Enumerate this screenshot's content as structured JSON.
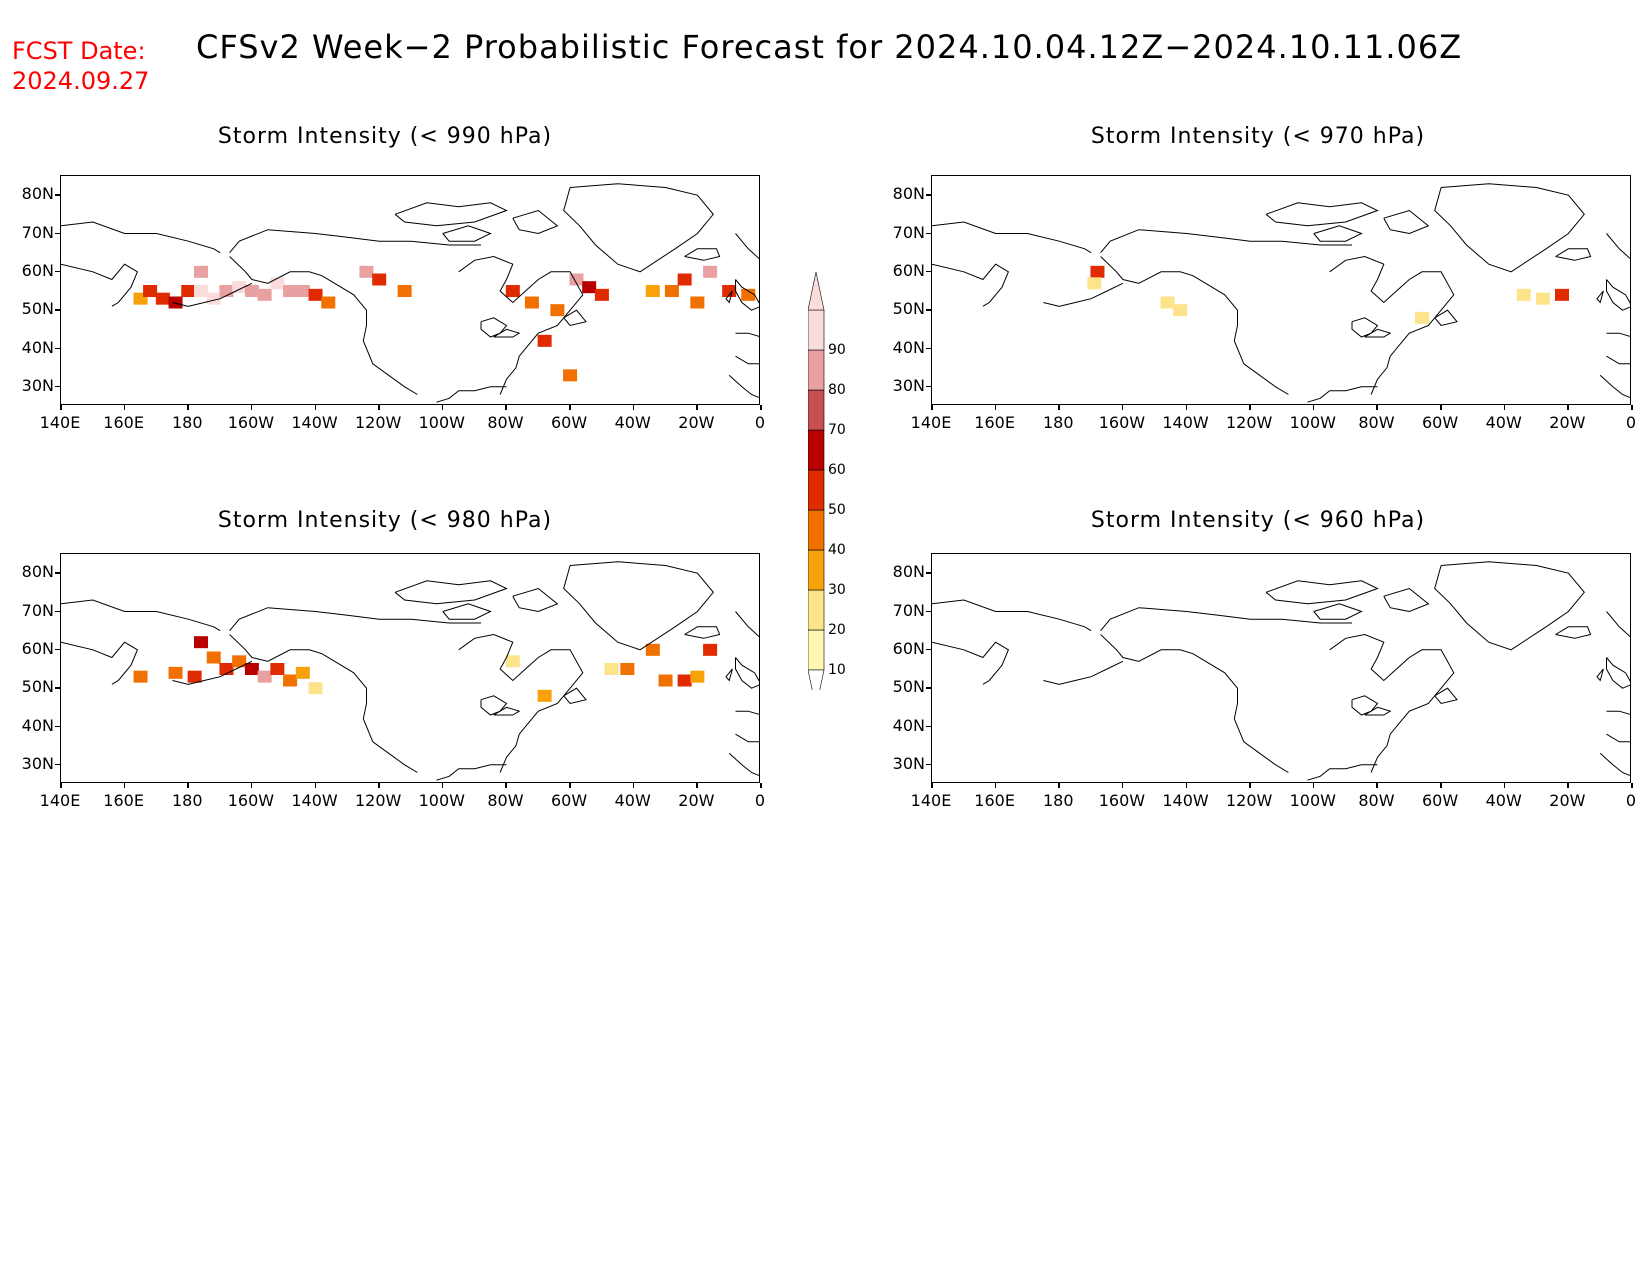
{
  "header": {
    "fcst_label": "FCST Date:",
    "fcst_date": "2024.09.27",
    "title": "CFSv2 Week−2 Probabilistic Forecast for 2024.10.04.12Z−2024.10.11.06Z"
  },
  "axes": {
    "lat_labels": [
      "80N",
      "70N",
      "60N",
      "50N",
      "40N",
      "30N"
    ],
    "lat_values": [
      80,
      70,
      60,
      50,
      40,
      30
    ],
    "lon_labels": [
      "140E",
      "160E",
      "180",
      "160W",
      "140W",
      "120W",
      "100W",
      "80W",
      "60W",
      "40W",
      "20W",
      "0"
    ],
    "lon_values": [
      140,
      160,
      180,
      200,
      220,
      240,
      260,
      280,
      300,
      320,
      340,
      360
    ],
    "lon_range": [
      140,
      360
    ],
    "lat_range": [
      25,
      85
    ]
  },
  "panels": [
    {
      "id": "p990",
      "title": "Storm Intensity (< 990 hPa)"
    },
    {
      "id": "p970",
      "title": "Storm Intensity (< 970 hPa)"
    },
    {
      "id": "p980",
      "title": "Storm Intensity (< 980 hPa)"
    },
    {
      "id": "p960",
      "title": "Storm Intensity (< 960 hPa)"
    }
  ],
  "colorbar": {
    "levels": [
      "10",
      "20",
      "30",
      "40",
      "50",
      "60",
      "70",
      "80",
      "90"
    ],
    "colors": [
      "#fff6b4",
      "#fde48a",
      "#f7a20a",
      "#f07000",
      "#e02a00",
      "#b80000",
      "#c85050",
      "#e8a0a0",
      "#fadcdc"
    ]
  },
  "chart_data": [
    {
      "type": "heatmap",
      "title": "Storm Intensity (< 990 hPa)",
      "x_unit": "longitude (deg E)",
      "y_unit": "latitude",
      "cells": [
        {
          "lon": 165,
          "lat": 53,
          "p": 30
        },
        {
          "lon": 168,
          "lat": 55,
          "p": 50
        },
        {
          "lon": 172,
          "lat": 53,
          "p": 50
        },
        {
          "lon": 176,
          "lat": 52,
          "p": 60
        },
        {
          "lon": 180,
          "lat": 55,
          "p": 50
        },
        {
          "lon": 184,
          "lat": 55,
          "p": 90
        },
        {
          "lon": 184,
          "lat": 60,
          "p": 80
        },
        {
          "lon": 188,
          "lat": 53,
          "p": 90
        },
        {
          "lon": 192,
          "lat": 55,
          "p": 80
        },
        {
          "lon": 196,
          "lat": 56,
          "p": 90
        },
        {
          "lon": 200,
          "lat": 55,
          "p": 80
        },
        {
          "lon": 204,
          "lat": 54,
          "p": 80
        },
        {
          "lon": 208,
          "lat": 57,
          "p": 90
        },
        {
          "lon": 212,
          "lat": 55,
          "p": 80
        },
        {
          "lon": 216,
          "lat": 55,
          "p": 80
        },
        {
          "lon": 220,
          "lat": 54,
          "p": 50
        },
        {
          "lon": 224,
          "lat": 52,
          "p": 40
        },
        {
          "lon": 236,
          "lat": 60,
          "p": 80
        },
        {
          "lon": 240,
          "lat": 58,
          "p": 50
        },
        {
          "lon": 248,
          "lat": 55,
          "p": 40
        },
        {
          "lon": 282,
          "lat": 55,
          "p": 50
        },
        {
          "lon": 288,
          "lat": 52,
          "p": 40
        },
        {
          "lon": 296,
          "lat": 50,
          "p": 40
        },
        {
          "lon": 302,
          "lat": 58,
          "p": 80
        },
        {
          "lon": 306,
          "lat": 56,
          "p": 60
        },
        {
          "lon": 310,
          "lat": 54,
          "p": 50
        },
        {
          "lon": 326,
          "lat": 55,
          "p": 30
        },
        {
          "lon": 332,
          "lat": 55,
          "p": 40
        },
        {
          "lon": 336,
          "lat": 58,
          "p": 50
        },
        {
          "lon": 340,
          "lat": 52,
          "p": 40
        },
        {
          "lon": 344,
          "lat": 60,
          "p": 80
        },
        {
          "lon": 350,
          "lat": 55,
          "p": 50
        },
        {
          "lon": 356,
          "lat": 54,
          "p": 40
        },
        {
          "lon": 300,
          "lat": 33,
          "p": 40
        },
        {
          "lon": 292,
          "lat": 42,
          "p": 50
        }
      ]
    },
    {
      "type": "heatmap",
      "title": "Storm Intensity (< 970 hPa)",
      "x_unit": "longitude (deg E)",
      "y_unit": "latitude",
      "cells": [
        {
          "lon": 192,
          "lat": 60,
          "p": 50
        },
        {
          "lon": 191,
          "lat": 57,
          "p": 20
        },
        {
          "lon": 214,
          "lat": 52,
          "p": 20
        },
        {
          "lon": 218,
          "lat": 50,
          "p": 20
        },
        {
          "lon": 294,
          "lat": 48,
          "p": 20
        },
        {
          "lon": 326,
          "lat": 54,
          "p": 20
        },
        {
          "lon": 332,
          "lat": 53,
          "p": 20
        },
        {
          "lon": 338,
          "lat": 54,
          "p": 50
        }
      ]
    },
    {
      "type": "heatmap",
      "title": "Storm Intensity (< 980 hPa)",
      "x_unit": "longitude (deg E)",
      "y_unit": "latitude",
      "cells": [
        {
          "lon": 165,
          "lat": 53,
          "p": 40
        },
        {
          "lon": 176,
          "lat": 54,
          "p": 40
        },
        {
          "lon": 182,
          "lat": 53,
          "p": 50
        },
        {
          "lon": 184,
          "lat": 62,
          "p": 60
        },
        {
          "lon": 188,
          "lat": 58,
          "p": 40
        },
        {
          "lon": 192,
          "lat": 55,
          "p": 50
        },
        {
          "lon": 196,
          "lat": 57,
          "p": 40
        },
        {
          "lon": 200,
          "lat": 55,
          "p": 60
        },
        {
          "lon": 204,
          "lat": 53,
          "p": 80
        },
        {
          "lon": 208,
          "lat": 55,
          "p": 50
        },
        {
          "lon": 212,
          "lat": 52,
          "p": 40
        },
        {
          "lon": 216,
          "lat": 54,
          "p": 30
        },
        {
          "lon": 220,
          "lat": 50,
          "p": 20
        },
        {
          "lon": 292,
          "lat": 48,
          "p": 30
        },
        {
          "lon": 313,
          "lat": 55,
          "p": 20
        },
        {
          "lon": 318,
          "lat": 55,
          "p": 40
        },
        {
          "lon": 326,
          "lat": 60,
          "p": 40
        },
        {
          "lon": 330,
          "lat": 52,
          "p": 40
        },
        {
          "lon": 336,
          "lat": 52,
          "p": 50
        },
        {
          "lon": 344,
          "lat": 60,
          "p": 50
        },
        {
          "lon": 340,
          "lat": 53,
          "p": 30
        },
        {
          "lon": 282,
          "lat": 57,
          "p": 20
        }
      ]
    },
    {
      "type": "heatmap",
      "title": "Storm Intensity (< 960 hPa)",
      "x_unit": "longitude (deg E)",
      "y_unit": "latitude",
      "cells": []
    }
  ]
}
